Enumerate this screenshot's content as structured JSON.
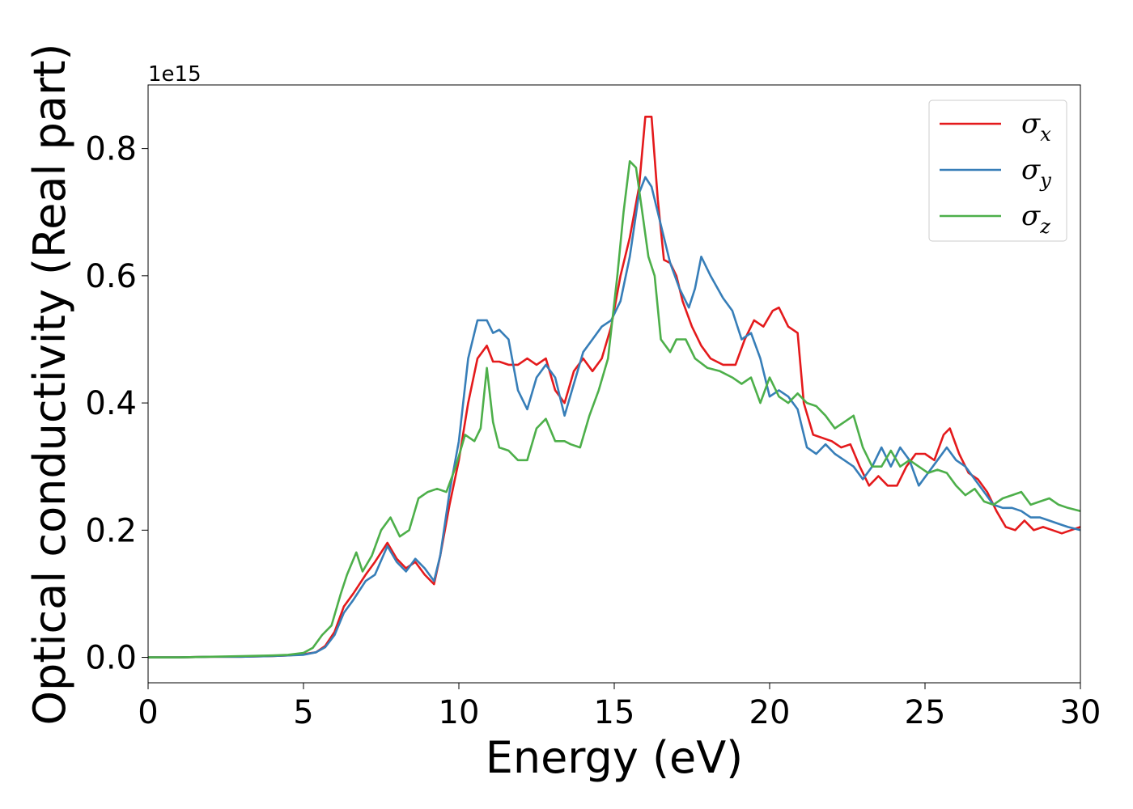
{
  "chart_data": {
    "type": "line",
    "title": "",
    "xlabel": "Energy (eV)",
    "ylabel": "Optical conductivity (Real part)",
    "y_offset_label": "1e15",
    "xlim": [
      0,
      30
    ],
    "ylim": [
      -0.04,
      0.9
    ],
    "x_ticks": [
      0,
      5,
      10,
      15,
      20,
      25,
      30
    ],
    "y_ticks": [
      0.0,
      0.2,
      0.4,
      0.6,
      0.8
    ],
    "y_tick_labels": [
      "0.0",
      "0.2",
      "0.4",
      "0.6",
      "0.8"
    ],
    "grid": false,
    "legend_position": "top-right",
    "series": [
      {
        "name": "σx",
        "legend_base": "σ",
        "legend_sub": "x",
        "color": "#e41a1c",
        "x": [
          0,
          1,
          2,
          3,
          4,
          4.5,
          5,
          5.4,
          5.7,
          6.0,
          6.3,
          6.6,
          7.0,
          7.3,
          7.7,
          8.0,
          8.3,
          8.6,
          8.9,
          9.2,
          9.4,
          9.7,
          10.0,
          10.3,
          10.6,
          10.9,
          11.1,
          11.3,
          11.6,
          11.9,
          12.2,
          12.5,
          12.8,
          13.1,
          13.4,
          13.7,
          14.0,
          14.3,
          14.6,
          14.9,
          15.2,
          15.5,
          15.8,
          16.0,
          16.2,
          16.4,
          16.6,
          16.8,
          17.0,
          17.2,
          17.5,
          17.8,
          18.1,
          18.5,
          18.9,
          19.2,
          19.5,
          19.8,
          20.1,
          20.3,
          20.6,
          20.9,
          21.1,
          21.4,
          21.7,
          22.0,
          22.3,
          22.6,
          22.9,
          23.2,
          23.5,
          23.8,
          24.1,
          24.4,
          24.7,
          25.0,
          25.3,
          25.6,
          25.8,
          26.1,
          26.4,
          26.7,
          27.0,
          27.3,
          27.6,
          27.9,
          28.2,
          28.5,
          28.8,
          29.1,
          29.4,
          29.7,
          30
        ],
        "y": [
          0,
          0,
          0.001,
          0.001,
          0.002,
          0.003,
          0.005,
          0.008,
          0.018,
          0.04,
          0.08,
          0.1,
          0.13,
          0.15,
          0.18,
          0.155,
          0.14,
          0.15,
          0.13,
          0.115,
          0.16,
          0.24,
          0.31,
          0.4,
          0.47,
          0.49,
          0.465,
          0.465,
          0.46,
          0.46,
          0.47,
          0.46,
          0.47,
          0.42,
          0.4,
          0.45,
          0.47,
          0.45,
          0.47,
          0.52,
          0.6,
          0.66,
          0.74,
          0.85,
          0.85,
          0.72,
          0.625,
          0.62,
          0.6,
          0.56,
          0.52,
          0.49,
          0.47,
          0.46,
          0.46,
          0.5,
          0.53,
          0.52,
          0.545,
          0.55,
          0.52,
          0.51,
          0.4,
          0.35,
          0.345,
          0.34,
          0.33,
          0.335,
          0.3,
          0.27,
          0.285,
          0.27,
          0.27,
          0.3,
          0.32,
          0.32,
          0.31,
          0.35,
          0.36,
          0.32,
          0.29,
          0.28,
          0.26,
          0.23,
          0.205,
          0.2,
          0.215,
          0.2,
          0.205,
          0.2,
          0.195,
          0.2,
          0.205
        ]
      },
      {
        "name": "σy",
        "legend_base": "σ",
        "legend_sub": "y",
        "color": "#377eb8",
        "x": [
          0,
          1,
          2,
          3,
          4,
          4.5,
          5,
          5.4,
          5.7,
          6.0,
          6.3,
          6.6,
          7.0,
          7.3,
          7.7,
          8.0,
          8.3,
          8.6,
          8.9,
          9.2,
          9.4,
          9.7,
          10.0,
          10.3,
          10.6,
          10.9,
          11.1,
          11.3,
          11.6,
          11.9,
          12.2,
          12.5,
          12.8,
          13.1,
          13.4,
          13.7,
          14.0,
          14.3,
          14.6,
          14.9,
          15.2,
          15.5,
          15.8,
          16.0,
          16.2,
          16.5,
          16.8,
          17.1,
          17.4,
          17.6,
          17.8,
          18.1,
          18.5,
          18.8,
          19.1,
          19.4,
          19.7,
          20.0,
          20.3,
          20.6,
          20.9,
          21.2,
          21.5,
          21.8,
          22.1,
          22.4,
          22.7,
          23.0,
          23.3,
          23.6,
          23.9,
          24.2,
          24.5,
          24.8,
          25.1,
          25.4,
          25.7,
          26.0,
          26.3,
          26.6,
          26.9,
          27.2,
          27.5,
          27.8,
          28.1,
          28.4,
          28.7,
          29.0,
          29.3,
          29.6,
          30
        ],
        "y": [
          0,
          0,
          0.001,
          0.001,
          0.002,
          0.003,
          0.004,
          0.008,
          0.016,
          0.035,
          0.07,
          0.09,
          0.12,
          0.13,
          0.175,
          0.15,
          0.135,
          0.155,
          0.14,
          0.12,
          0.16,
          0.26,
          0.34,
          0.47,
          0.53,
          0.53,
          0.51,
          0.515,
          0.5,
          0.42,
          0.39,
          0.44,
          0.46,
          0.44,
          0.38,
          0.43,
          0.48,
          0.5,
          0.52,
          0.53,
          0.56,
          0.63,
          0.73,
          0.755,
          0.74,
          0.68,
          0.62,
          0.58,
          0.55,
          0.58,
          0.63,
          0.6,
          0.565,
          0.545,
          0.5,
          0.51,
          0.47,
          0.41,
          0.42,
          0.41,
          0.39,
          0.33,
          0.32,
          0.335,
          0.32,
          0.31,
          0.3,
          0.28,
          0.3,
          0.33,
          0.3,
          0.33,
          0.31,
          0.27,
          0.29,
          0.31,
          0.33,
          0.31,
          0.3,
          0.28,
          0.26,
          0.24,
          0.235,
          0.235,
          0.23,
          0.22,
          0.22,
          0.215,
          0.21,
          0.205,
          0.2
        ]
      },
      {
        "name": "σz",
        "legend_base": "σ",
        "legend_sub": "z",
        "color": "#4daf4a",
        "x": [
          0,
          1,
          2,
          3,
          4,
          4.5,
          5,
          5.3,
          5.6,
          5.9,
          6.2,
          6.4,
          6.7,
          6.9,
          7.2,
          7.5,
          7.8,
          8.1,
          8.4,
          8.7,
          9.0,
          9.3,
          9.6,
          9.9,
          10.2,
          10.5,
          10.7,
          10.9,
          11.1,
          11.3,
          11.6,
          11.9,
          12.2,
          12.5,
          12.8,
          13.1,
          13.4,
          13.6,
          13.9,
          14.2,
          14.5,
          14.8,
          15.1,
          15.3,
          15.5,
          15.7,
          15.9,
          16.1,
          16.3,
          16.5,
          16.8,
          17.0,
          17.3,
          17.6,
          18.0,
          18.4,
          18.8,
          19.1,
          19.4,
          19.7,
          20.0,
          20.3,
          20.6,
          20.9,
          21.2,
          21.5,
          21.8,
          22.1,
          22.4,
          22.7,
          23.0,
          23.3,
          23.6,
          23.9,
          24.2,
          24.5,
          24.8,
          25.1,
          25.4,
          25.7,
          26.0,
          26.3,
          26.6,
          26.9,
          27.2,
          27.5,
          27.8,
          28.1,
          28.4,
          28.7,
          29.0,
          29.3,
          29.6,
          30
        ],
        "y": [
          0,
          0,
          0.001,
          0.002,
          0.003,
          0.004,
          0.007,
          0.015,
          0.035,
          0.05,
          0.1,
          0.13,
          0.165,
          0.135,
          0.16,
          0.2,
          0.22,
          0.19,
          0.2,
          0.25,
          0.26,
          0.265,
          0.26,
          0.3,
          0.35,
          0.34,
          0.36,
          0.455,
          0.37,
          0.33,
          0.325,
          0.31,
          0.31,
          0.36,
          0.375,
          0.34,
          0.34,
          0.335,
          0.33,
          0.38,
          0.42,
          0.47,
          0.6,
          0.7,
          0.78,
          0.77,
          0.7,
          0.63,
          0.6,
          0.5,
          0.48,
          0.5,
          0.5,
          0.47,
          0.455,
          0.45,
          0.44,
          0.43,
          0.44,
          0.4,
          0.44,
          0.41,
          0.4,
          0.415,
          0.4,
          0.395,
          0.38,
          0.36,
          0.37,
          0.38,
          0.33,
          0.3,
          0.3,
          0.325,
          0.3,
          0.31,
          0.3,
          0.29,
          0.295,
          0.29,
          0.27,
          0.255,
          0.265,
          0.245,
          0.24,
          0.25,
          0.255,
          0.26,
          0.24,
          0.245,
          0.25,
          0.24,
          0.235,
          0.23
        ]
      }
    ]
  }
}
